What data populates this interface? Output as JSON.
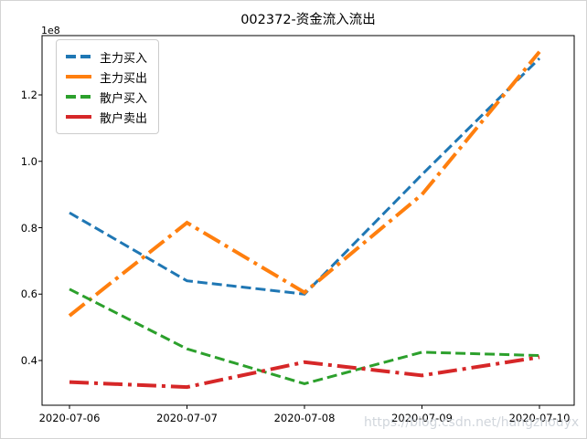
{
  "figure": {
    "watermark": "https://blog.csdn.net/hangzhouyx"
  },
  "chart_data": {
    "type": "line",
    "title": "002372-资金流入流出",
    "xlabel": "",
    "ylabel": "",
    "y_offset_label": "1e8",
    "unit": "1e8",
    "x_tick_labels": [
      "2020-07-06",
      "2020-07-07",
      "2020-07-08",
      "2020-07-09",
      "2020-07-10"
    ],
    "y_tick_labels": [
      "0.4",
      "0.6",
      "0.8",
      "1.0",
      "1.2"
    ],
    "y_tick_values": [
      0.4,
      0.6,
      0.8,
      1.0,
      1.2
    ],
    "ylim": [
      0.265,
      1.38
    ],
    "grid": false,
    "legend_position": "upper-left",
    "series": [
      {
        "name": "主力买入",
        "color": "#1f77b4",
        "linestyle": "dashed",
        "linewidth": 3,
        "values": [
          0.845,
          0.64,
          0.6,
          0.96,
          1.31
        ]
      },
      {
        "name": "主力买出",
        "color": "#ff7f0e",
        "linestyle": "dashdot",
        "linewidth": 4,
        "values": [
          0.535,
          0.815,
          0.605,
          0.9,
          1.33
        ]
      },
      {
        "name": "散户买入",
        "color": "#2ca02c",
        "linestyle": "dashed",
        "linewidth": 3,
        "values": [
          0.615,
          0.435,
          0.33,
          0.425,
          0.415
        ]
      },
      {
        "name": "散户卖出",
        "color": "#d62728",
        "linestyle": "dashdot",
        "linewidth": 4,
        "values": [
          0.335,
          0.32,
          0.395,
          0.355,
          0.41
        ]
      }
    ]
  }
}
